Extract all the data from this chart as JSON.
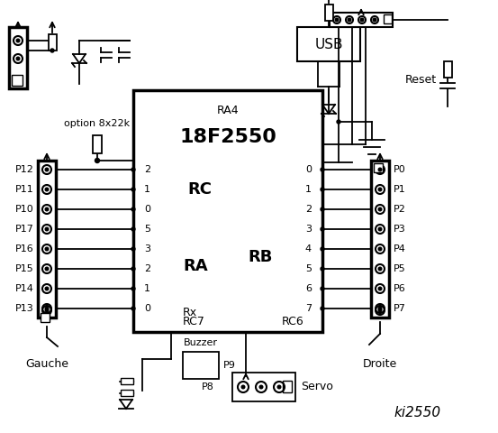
{
  "bg_color": "#ffffff",
  "fg_color": "#000000",
  "title": "ki2550",
  "chip_label": "18F2550",
  "chip_sublabel": "RA4",
  "left_connector_label": "Gauche",
  "right_connector_label": "Droite",
  "left_pins": [
    "P12",
    "P11",
    "P10",
    "P17",
    "P16",
    "P15",
    "P14",
    "P13"
  ],
  "right_pins": [
    "P0",
    "P1",
    "P2",
    "P3",
    "P4",
    "P5",
    "P6",
    "P7"
  ],
  "rc_pins": [
    "2",
    "1",
    "0",
    "5",
    "3",
    "2",
    "1",
    "0"
  ],
  "rb_pins": [
    "0",
    "1",
    "2",
    "3",
    "4",
    "5",
    "6",
    "7"
  ],
  "option_label": "option 8x22k",
  "usb_label": "USB",
  "reset_label": "Reset",
  "buzzer_label": "Buzzer",
  "servo_label": "Servo",
  "p8_label": "P8",
  "p9_label": "P9",
  "rc_label": "RC",
  "ra_label": "RA",
  "rb_label": "RB",
  "rx_label": "Rx",
  "rc7_label": "RC7",
  "rc6_label": "RC6"
}
